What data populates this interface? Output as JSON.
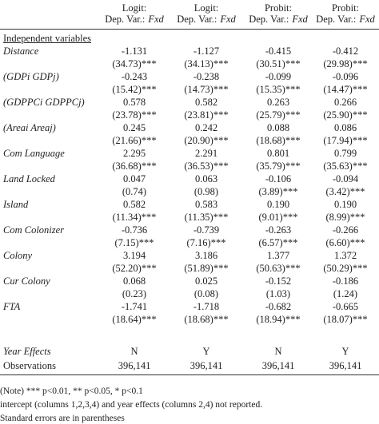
{
  "header": {
    "columns": [
      {
        "model": "Logit:",
        "dep": "Dep. Var.:",
        "depvar": "Fxd"
      },
      {
        "model": "Logit:",
        "dep": "Dep. Var.:",
        "depvar": "Fxd"
      },
      {
        "model": "Probit:",
        "dep": "Dep. Var.:",
        "depvar": "Fxd"
      },
      {
        "model": "Probit:",
        "dep": "Dep. Var.:",
        "depvar": "Fxd"
      }
    ]
  },
  "section": "Independent variables",
  "rows": [
    {
      "label": "Distance",
      "coef": [
        "-1.131",
        "-1.127",
        "-0.415",
        "-0.412"
      ],
      "se": [
        "(34.73)***",
        "(34.13)***",
        "(30.51)***",
        "(29.98)***"
      ]
    },
    {
      "label": "(GDPi GDPj)",
      "coef": [
        "-0.243",
        "-0.238",
        "-0.099",
        "-0.096"
      ],
      "se": [
        "(15.42)***",
        "(14.73)***",
        "(15.35)***",
        "(14.47)***"
      ]
    },
    {
      "label": "(GDPPCi GDPPCj)",
      "coef": [
        "0.578",
        "0.582",
        "0.263",
        "0.266"
      ],
      "se": [
        "(23.78)***",
        "(23.81)***",
        "(25.79)***",
        "(25.90)***"
      ]
    },
    {
      "label": "(Areai Areaj)",
      "coef": [
        "0.245",
        "0.242",
        "0.088",
        "0.086"
      ],
      "se": [
        "(21.66)***",
        "(20.90)***",
        "(18.68)***",
        "(17.94)***"
      ]
    },
    {
      "label": "Com Language",
      "coef": [
        "2.295",
        "2.291",
        "0.801",
        "0.799"
      ],
      "se": [
        "(36.68)***",
        "(36.53)***",
        "(35.79)***",
        "(35.63)***"
      ]
    },
    {
      "label": "Land Locked",
      "coef": [
        "0.047",
        "0.063",
        "-0.106",
        "-0.094"
      ],
      "se": [
        "(0.74)",
        "(0.98)",
        "(3.89)***",
        "(3.42)***"
      ]
    },
    {
      "label": "Island",
      "coef": [
        "0.582",
        "0.583",
        "0.190",
        "0.190"
      ],
      "se": [
        "(11.34)***",
        "(11.35)***",
        "(9.01)***",
        "(8.99)***"
      ]
    },
    {
      "label": "Com Colonizer",
      "coef": [
        "-0.736",
        "-0.739",
        "-0.263",
        "-0.266"
      ],
      "se": [
        "(7.15)***",
        "(7.16)***",
        "(6.57)***",
        "(6.60)***"
      ]
    },
    {
      "label": "Colony",
      "coef": [
        "3.194",
        "3.186",
        "1.377",
        "1.372"
      ],
      "se": [
        "(52.20)***",
        "(51.89)***",
        "(50.63)***",
        "(50.29)***"
      ]
    },
    {
      "label": "Cur Colony",
      "coef": [
        "0.068",
        "0.025",
        "-0.152",
        "-0.186"
      ],
      "se": [
        "(0.23)",
        "(0.08)",
        "(1.03)",
        "(1.24)"
      ]
    },
    {
      "label": "FTA",
      "coef": [
        "-1.741",
        "-1.718",
        "-0.682",
        "-0.665"
      ],
      "se": [
        "(18.64)***",
        "(18.68)***",
        "(18.94)***",
        "(18.07)***"
      ]
    }
  ],
  "year_effects": {
    "label": "Year Effects",
    "values": [
      "N",
      "Y",
      "N",
      "Y"
    ]
  },
  "observations": {
    "label": "Observations",
    "values": [
      "396,141",
      "396,141",
      "396,141",
      "396,141"
    ]
  },
  "notes": [
    "(Note) *** p<0.01, ** p<0.05, * p<0.1",
    "intercept (columns 1,2,3,4) and year effects (columns 2,4) not reported.",
    "Standard errors are in parentheses"
  ]
}
